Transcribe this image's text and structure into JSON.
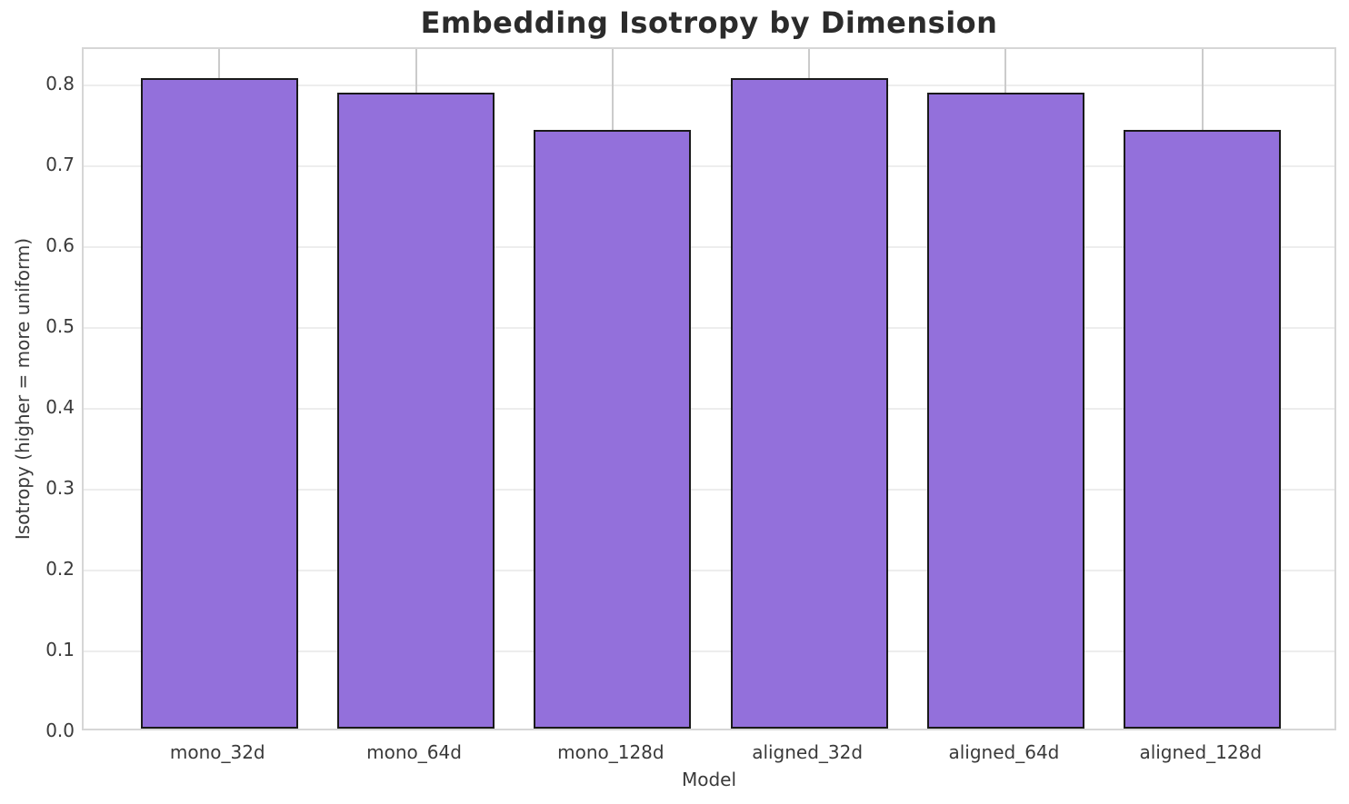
{
  "chart_data": {
    "type": "bar",
    "title": "Embedding Isotropy by Dimension",
    "xlabel": "Model",
    "ylabel": "Isotropy (higher = more uniform)",
    "categories": [
      "mono_32d",
      "mono_64d",
      "mono_128d",
      "aligned_32d",
      "aligned_64d",
      "aligned_128d"
    ],
    "values": [
      0.805,
      0.787,
      0.74,
      0.805,
      0.787,
      0.74
    ],
    "ylim": [
      0,
      0.845
    ],
    "yticks": [
      0.0,
      0.1,
      0.2,
      0.3,
      0.4,
      0.5,
      0.6,
      0.7,
      0.8
    ],
    "ytick_format_decimals": 1,
    "grid": true,
    "legend": "none",
    "bar_width_fraction": 0.8,
    "colors": {
      "bar_fill": "#9370DB",
      "bar_edge": "#1a1a1a",
      "h_gridline": "#ededed",
      "v_gridline": "#cbcbcb",
      "spine": "#d6d6d6",
      "title_text": "#2b2b2b",
      "tick_text": "#3a3a3a",
      "background": "#ffffff"
    }
  }
}
